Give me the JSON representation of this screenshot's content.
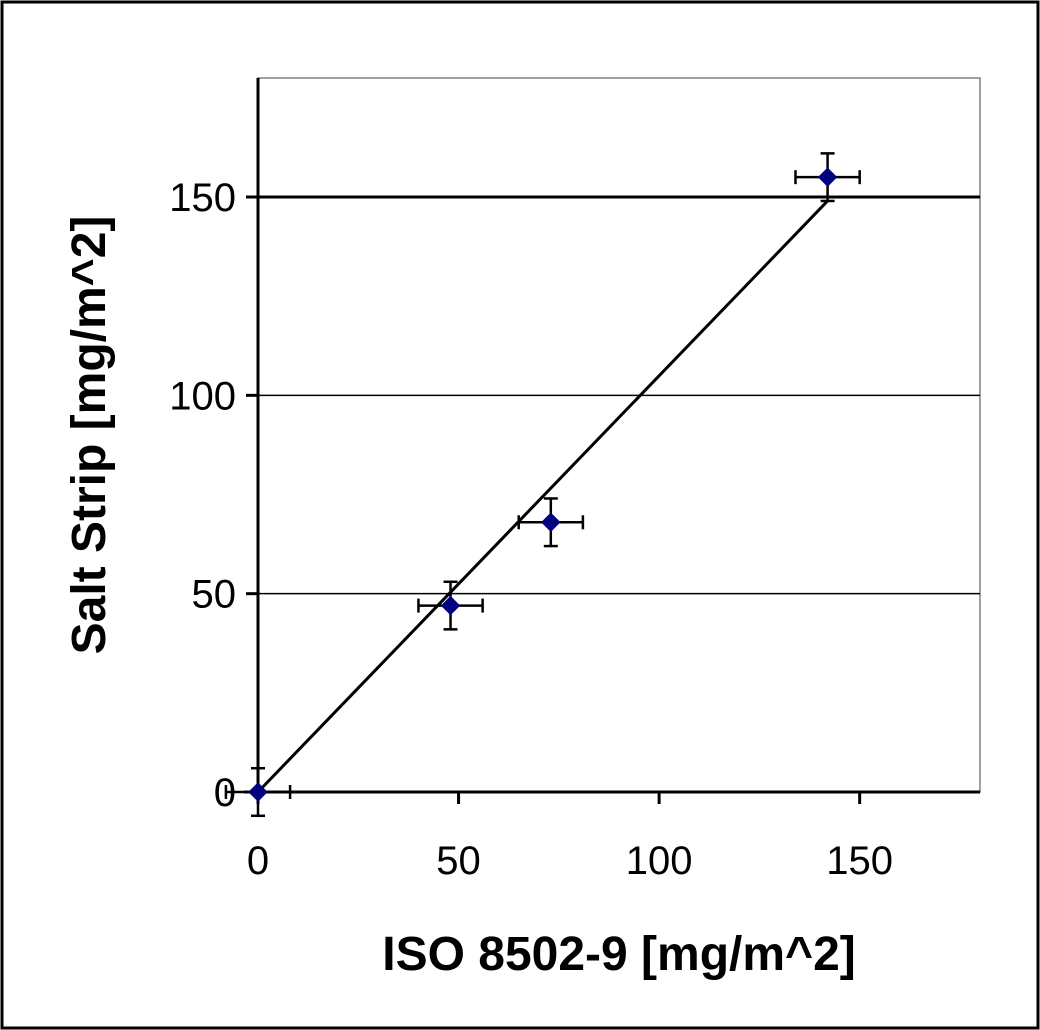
{
  "chart_data": {
    "type": "scatter",
    "title": "",
    "xlabel": "ISO 8502-9 [mg/m^2]",
    "ylabel": "Salt Strip [mg/m^2]",
    "xlim": [
      0,
      180
    ],
    "ylim": [
      0,
      180
    ],
    "x_ticks": [
      0,
      50,
      100,
      150
    ],
    "y_ticks": [
      0,
      50,
      100,
      150
    ],
    "grid": "horizontal",
    "legend": "none",
    "series": [
      {
        "marker": "diamond",
        "color": "#000080",
        "points": [
          {
            "x": 0,
            "y": 0,
            "x_err": 8,
            "y_err": 6
          },
          {
            "x": 48,
            "y": 47,
            "x_err": 8,
            "y_err": 6
          },
          {
            "x": 73,
            "y": 68,
            "x_err": 8,
            "y_err": 6
          },
          {
            "x": 142,
            "y": 155,
            "x_err": 8,
            "y_err": 6
          }
        ]
      }
    ],
    "trendline": {
      "x": [
        0,
        142
      ],
      "y": [
        0,
        149
      ],
      "color": "#000000"
    }
  }
}
